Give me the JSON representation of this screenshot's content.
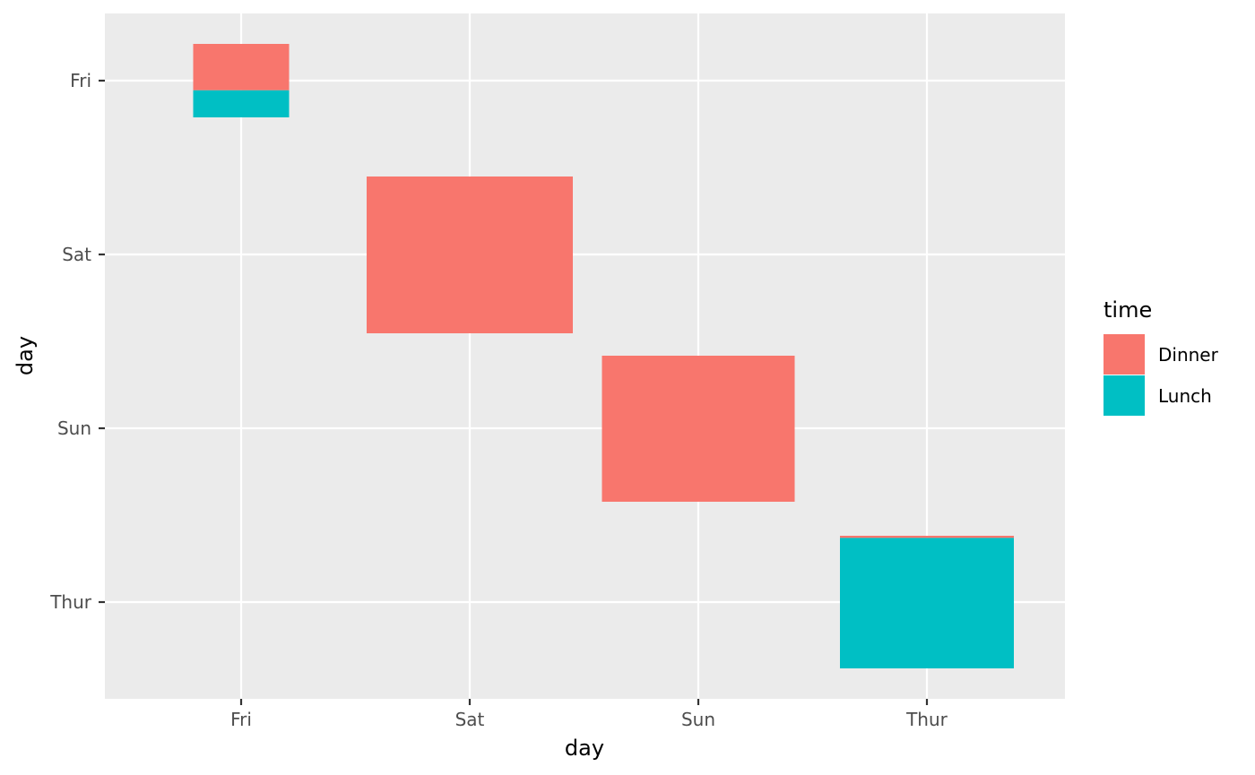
{
  "chart_data": {
    "type": "mosaic",
    "x_label": "day",
    "y_label": "day",
    "x_categories": [
      "Fri",
      "Sat",
      "Sun",
      "Thur"
    ],
    "y_categories": [
      "Fri",
      "Sat",
      "Sun",
      "Thur"
    ],
    "fill_variable": "time",
    "legend": {
      "title": "time",
      "position": "right",
      "entries": [
        {
          "name": "Dinner",
          "color": "#F8766D"
        },
        {
          "name": "Lunch",
          "color": "#00BFC4"
        }
      ]
    },
    "cells": [
      {
        "x": "Fri",
        "y": "Fri",
        "width_share": 0.0984,
        "segments": [
          {
            "time": "Dinner",
            "count": 12
          },
          {
            "time": "Lunch",
            "count": 7
          }
        ]
      },
      {
        "x": "Sat",
        "y": "Sat",
        "width_share": 0.2213,
        "segments": [
          {
            "time": "Dinner",
            "count": 87
          }
        ]
      },
      {
        "x": "Sun",
        "y": "Sun",
        "width_share": 0.2072,
        "segments": [
          {
            "time": "Dinner",
            "count": 76
          }
        ]
      },
      {
        "x": "Thur",
        "y": "Thur",
        "width_share": 0.1872,
        "segments": [
          {
            "time": "Dinner",
            "count": 1
          },
          {
            "time": "Lunch",
            "count": 61
          }
        ]
      }
    ],
    "grid": true
  },
  "colors": {
    "panel_background": "#EBEBEB",
    "grid_line": "#FFFFFF",
    "tick_text": "#4D4D4D"
  }
}
